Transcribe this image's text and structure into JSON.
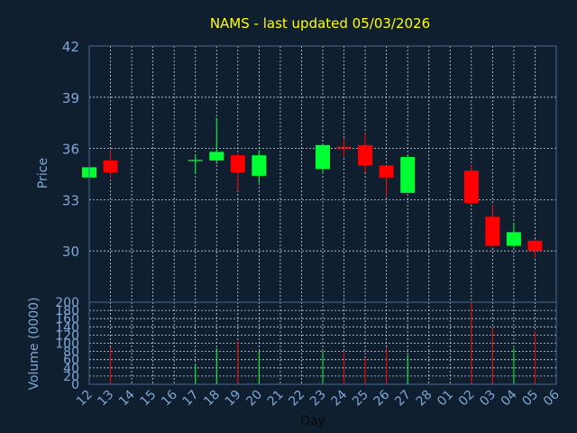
{
  "chart_data": {
    "type": "candlestick",
    "title": "NAMS - last updated 05/03/2026",
    "xlabel": "Day",
    "price_panel": {
      "ylabel": "Price",
      "ylim": [
        27,
        42
      ],
      "y_ticks": [
        "42",
        "39",
        "36",
        "33",
        "30"
      ],
      "grid": true
    },
    "volume_panel": {
      "ylabel": "Volume (0000)",
      "ylim": [
        0,
        200
      ],
      "y_ticks": [
        "0",
        "20",
        "40",
        "60",
        "80",
        "100",
        "120",
        "140",
        "160",
        "180",
        "200"
      ],
      "grid": true
    },
    "x_ticks": [
      "12",
      "13",
      "14",
      "15",
      "16",
      "17",
      "18",
      "19",
      "20",
      "21",
      "22",
      "23",
      "24",
      "25",
      "26",
      "27",
      "28",
      "01",
      "02",
      "03",
      "04",
      "05",
      "06"
    ],
    "candles": [
      {
        "day": "12",
        "open": 34.3,
        "high": 34.9,
        "low": 34.3,
        "close": 34.9,
        "volume": 0
      },
      {
        "day": "13",
        "open": 35.3,
        "high": 35.9,
        "low": 34.3,
        "close": 34.6,
        "volume": 90
      },
      {
        "day": "17",
        "open": 35.3,
        "high": 35.6,
        "low": 34.5,
        "close": 35.3,
        "volume": 48
      },
      {
        "day": "18",
        "open": 35.3,
        "high": 37.8,
        "low": 35.1,
        "close": 35.8,
        "volume": 88
      },
      {
        "day": "19",
        "open": 35.6,
        "high": 35.7,
        "low": 33.5,
        "close": 34.6,
        "volume": 105
      },
      {
        "day": "20",
        "open": 34.4,
        "high": 35.9,
        "low": 34.0,
        "close": 35.6,
        "volume": 80
      },
      {
        "day": "23",
        "open": 34.8,
        "high": 36.3,
        "low": 34.6,
        "close": 36.2,
        "volume": 80
      },
      {
        "day": "24",
        "open": 36.1,
        "high": 36.6,
        "low": 35.5,
        "close": 36.0,
        "volume": 78
      },
      {
        "day": "25",
        "open": 36.2,
        "high": 36.9,
        "low": 34.6,
        "close": 35.0,
        "volume": 62
      },
      {
        "day": "26",
        "open": 35.0,
        "high": 35.0,
        "low": 33.2,
        "close": 34.3,
        "volume": 90
      },
      {
        "day": "27",
        "open": 33.4,
        "high": 35.6,
        "low": 33.4,
        "close": 35.5,
        "volume": 72
      },
      {
        "day": "02",
        "open": 34.7,
        "high": 35.0,
        "low": 32.7,
        "close": 32.8,
        "volume": 200
      },
      {
        "day": "03",
        "open": 32.0,
        "high": 32.7,
        "low": 30.3,
        "close": 30.3,
        "volume": 138
      },
      {
        "day": "04",
        "open": 30.3,
        "high": 31.6,
        "low": 30.2,
        "close": 31.1,
        "volume": 88
      },
      {
        "day": "05",
        "open": 30.6,
        "high": 30.7,
        "low": 29.6,
        "close": 30.0,
        "volume": 130
      }
    ],
    "colors": {
      "up": "#00ff33",
      "down": "#ff0000",
      "title": "#ffff00",
      "axis_text": "#7fa6d4",
      "grid": "#c8d4e0",
      "background": "#0f1f30",
      "frame": "#4a6a90"
    }
  }
}
